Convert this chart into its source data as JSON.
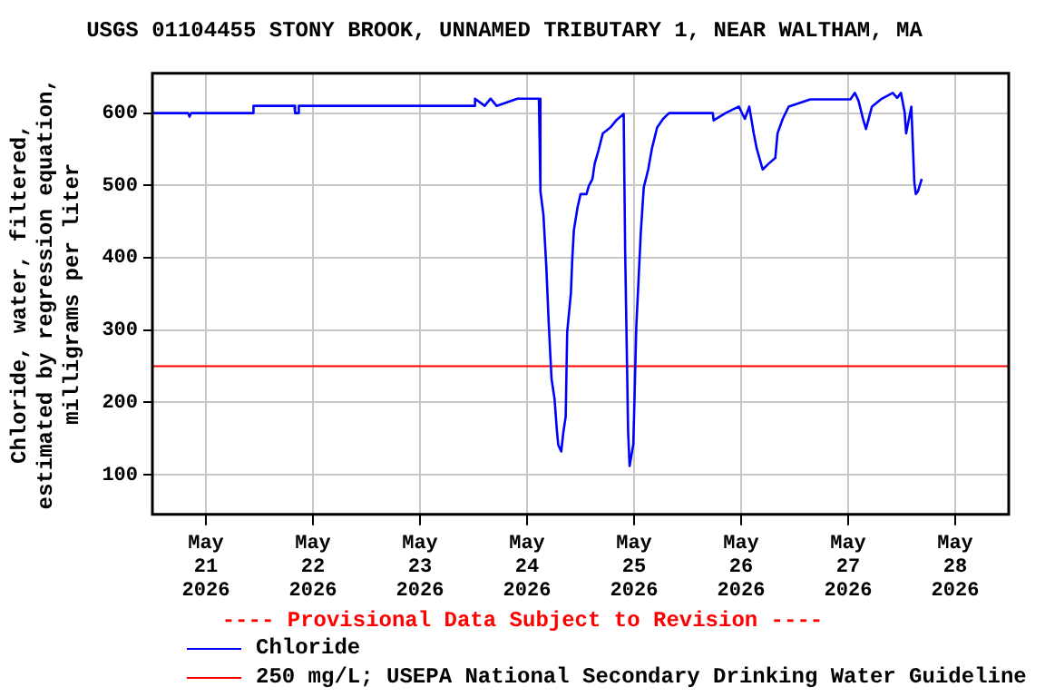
{
  "chart_data": {
    "type": "line",
    "title": "USGS 01104455 STONY BROOK, UNNAMED TRIBUTARY 1, NEAR WALTHAM, MA",
    "ylabel": "Chloride, water, filtered, estimated by regression equation, milligrams per liter",
    "annotations": [
      "---- Provisional Data Subject to Revision ----"
    ],
    "xlim": [
      "2026-05-20T12:00",
      "2026-05-28T12:00"
    ],
    "xticks": [
      {
        "value": "2026-05-21T00:00",
        "label": "May\n21\n2026"
      },
      {
        "value": "2026-05-22T00:00",
        "label": "May\n22\n2026"
      },
      {
        "value": "2026-05-23T00:00",
        "label": "May\n23\n2026"
      },
      {
        "value": "2026-05-24T00:00",
        "label": "May\n24\n2026"
      },
      {
        "value": "2026-05-25T00:00",
        "label": "May\n25\n2026"
      },
      {
        "value": "2026-05-26T00:00",
        "label": "May\n26\n2026"
      },
      {
        "value": "2026-05-27T00:00",
        "label": "May\n27\n2026"
      },
      {
        "value": "2026-05-28T00:00",
        "label": "May\n28\n2026"
      }
    ],
    "ylim": [
      45,
      655
    ],
    "yticks": [
      100,
      200,
      300,
      400,
      500,
      600
    ],
    "grid": true,
    "legend": "bottom",
    "ref_lines": [
      {
        "axis": "y",
        "value": 250,
        "label": "250 mg/L; USEPA National Secondary Drinking Water Guideline",
        "color": "#ff0000"
      }
    ],
    "series": [
      {
        "name": "Chloride",
        "color": "#0000ff",
        "x": [
          "2026-05-20T12:00",
          "2026-05-20T20:00",
          "2026-05-20T20:20",
          "2026-05-20T20:40",
          "2026-05-21T10:30",
          "2026-05-21T10:40",
          "2026-05-21T19:50",
          "2026-05-21T20:00",
          "2026-05-21T20:40",
          "2026-05-21T20:50",
          "2026-05-23T12:10",
          "2026-05-23T12:20",
          "2026-05-23T14:30",
          "2026-05-23T15:50",
          "2026-05-23T17:10",
          "2026-05-23T21:50",
          "2026-05-24T02:40",
          "2026-05-24T03:00",
          "2026-05-24T03:40",
          "2026-05-24T04:20",
          "2026-05-24T04:50",
          "2026-05-24T05:10",
          "2026-05-24T05:30",
          "2026-05-24T06:10",
          "2026-05-24T06:40",
          "2026-05-24T07:00",
          "2026-05-24T07:40",
          "2026-05-24T08:10",
          "2026-05-24T08:40",
          "2026-05-24T09:00",
          "2026-05-24T09:50",
          "2026-05-24T10:10",
          "2026-05-24T10:30",
          "2026-05-24T11:20",
          "2026-05-24T12:00",
          "2026-05-24T13:20",
          "2026-05-24T13:50",
          "2026-05-24T14:40",
          "2026-05-24T15:10",
          "2026-05-24T16:00",
          "2026-05-24T17:00",
          "2026-05-24T18:40",
          "2026-05-24T20:00",
          "2026-05-24T21:40",
          "2026-05-24T22:00",
          "2026-05-24T22:40",
          "2026-05-24T23:00",
          "2026-05-24T23:50",
          "2026-05-25T00:30",
          "2026-05-25T01:00",
          "2026-05-25T01:30",
          "2026-05-25T02:10",
          "2026-05-25T03:10",
          "2026-05-25T04:00",
          "2026-05-25T05:10",
          "2026-05-25T06:30",
          "2026-05-25T07:50",
          "2026-05-25T17:40",
          "2026-05-25T17:50",
          "2026-05-25T20:30",
          "2026-05-25T23:30",
          "2026-05-26T00:50",
          "2026-05-26T01:50",
          "2026-05-26T02:50",
          "2026-05-26T03:30",
          "2026-05-26T04:50",
          "2026-05-26T06:10",
          "2026-05-26T07:40",
          "2026-05-26T08:10",
          "2026-05-26T09:20",
          "2026-05-26T10:40",
          "2026-05-26T15:30",
          "2026-05-27T00:30",
          "2026-05-27T01:30",
          "2026-05-27T02:20",
          "2026-05-27T03:20",
          "2026-05-27T04:00",
          "2026-05-27T05:20",
          "2026-05-27T07:20",
          "2026-05-27T10:00",
          "2026-05-27T11:00",
          "2026-05-27T11:50",
          "2026-05-27T12:40",
          "2026-05-27T13:00",
          "2026-05-27T14:10",
          "2026-05-27T14:50",
          "2026-05-27T15:10",
          "2026-05-27T15:40",
          "2026-05-27T16:30"
        ],
        "values": [
          600,
          600,
          595,
          600,
          600,
          610,
          610,
          600,
          600,
          610,
          610,
          620,
          610,
          620,
          610,
          620,
          620,
          492,
          460,
          386,
          313,
          272,
          232,
          205,
          163,
          141,
          132,
          160,
          180,
          297,
          351,
          401,
          438,
          470,
          488,
          488,
          499,
          509,
          530,
          548,
          572,
          580,
          590,
          599,
          409,
          159,
          112,
          142,
          305,
          369,
          434,
          497,
          522,
          551,
          580,
          592,
          600,
          600,
          590,
          600,
          609,
          592,
          609,
          572,
          551,
          522,
          530,
          538,
          572,
          592,
          609,
          619,
          619,
          628,
          617,
          592,
          578,
          609,
          619,
          628,
          621,
          628,
          601,
          572,
          609,
          505,
          488,
          492,
          509
        ]
      }
    ]
  }
}
